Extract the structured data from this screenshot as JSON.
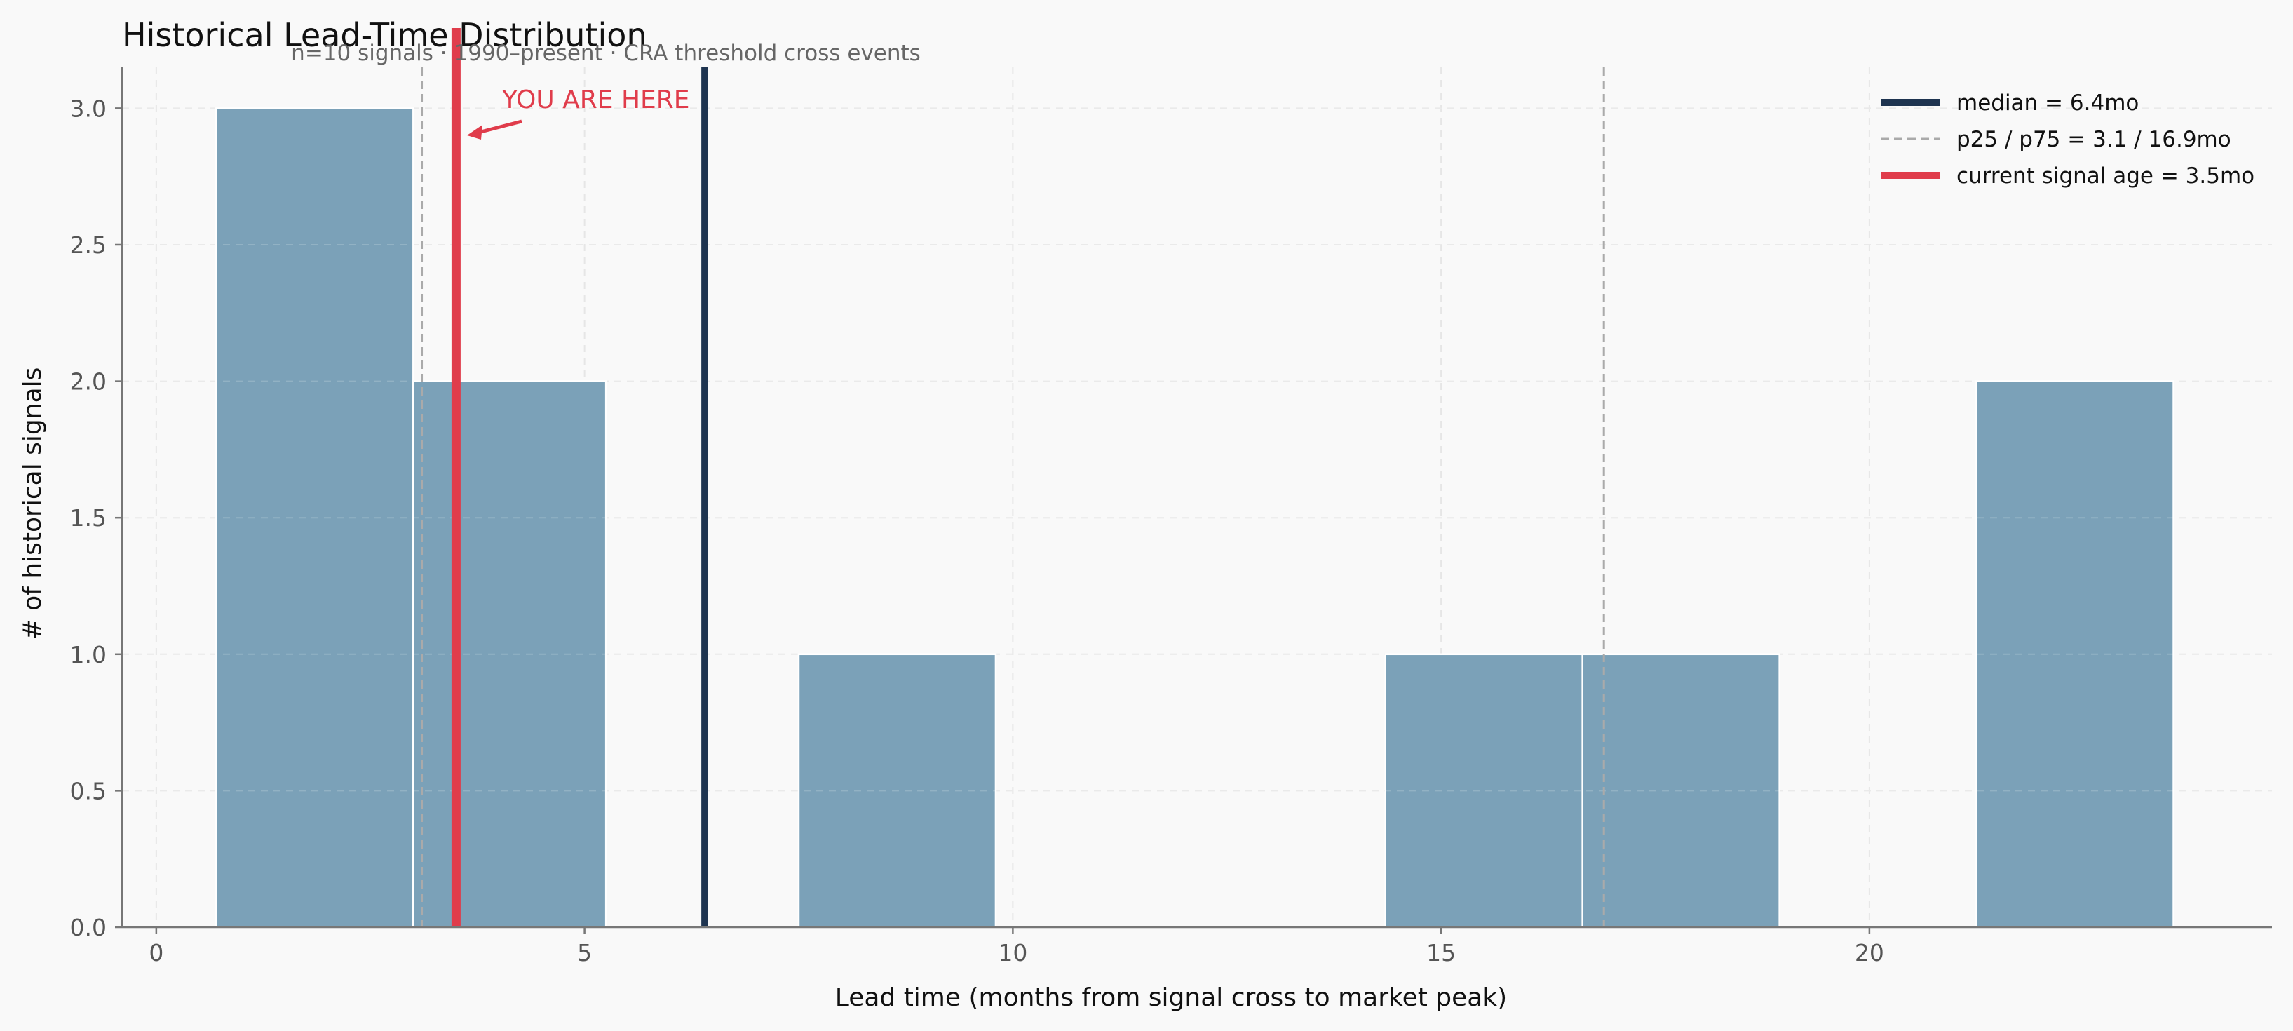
{
  "chart_data": {
    "type": "bar",
    "title": "Historical Lead-Time Distribution",
    "subtitle": "n=10 signals · 1990–present · CRA threshold cross events",
    "xlabel": "Lead time (months from signal cross to market peak)",
    "ylabel": "# of historical signals",
    "xlim": [
      -0.4,
      24.7
    ],
    "ylim": [
      0,
      3.15
    ],
    "xticks": [
      0,
      5,
      10,
      15,
      20
    ],
    "xtick_labels": [
      "0",
      "5",
      "10",
      "15",
      "20"
    ],
    "yticks": [
      0,
      0.5,
      1,
      1.5,
      2,
      2.5,
      3
    ],
    "ytick_labels": [
      "0.0",
      "0.5",
      "1.0",
      "1.5",
      "2.0",
      "2.5",
      "3.0"
    ],
    "grid": true,
    "bins": [
      {
        "x0": 0.7,
        "x1": 3.0,
        "count": 3
      },
      {
        "x0": 3.0,
        "x1": 5.25,
        "count": 2
      },
      {
        "x0": 7.5,
        "x1": 9.8,
        "count": 1
      },
      {
        "x0": 14.35,
        "x1": 16.65,
        "count": 1
      },
      {
        "x0": 16.65,
        "x1": 18.95,
        "count": 1
      },
      {
        "x0": 21.25,
        "x1": 23.55,
        "count": 2
      }
    ],
    "median": 6.4,
    "p25": 3.1,
    "p75": 16.9,
    "current_age": 3.5,
    "annotation": "YOU ARE HERE",
    "legend_position": "top-right",
    "legend": [
      {
        "label": "median = 6.4mo",
        "style": "solid-thick",
        "color": "#1e3450"
      },
      {
        "label": "p25 / p75 = 3.1 / 16.9mo",
        "style": "dashed",
        "color": "#aaaaaa"
      },
      {
        "label": "current signal age = 3.5mo",
        "style": "solid-thick",
        "color": "#e03c4b"
      }
    ],
    "colors": {
      "bar_fill": "#7ba1b8",
      "bar_edge": "#ffffff",
      "median": "#1e3450",
      "percentile": "#aaaaaa",
      "current": "#e03c4b",
      "axis": "#777777",
      "grid": "#e6e6e6"
    }
  }
}
